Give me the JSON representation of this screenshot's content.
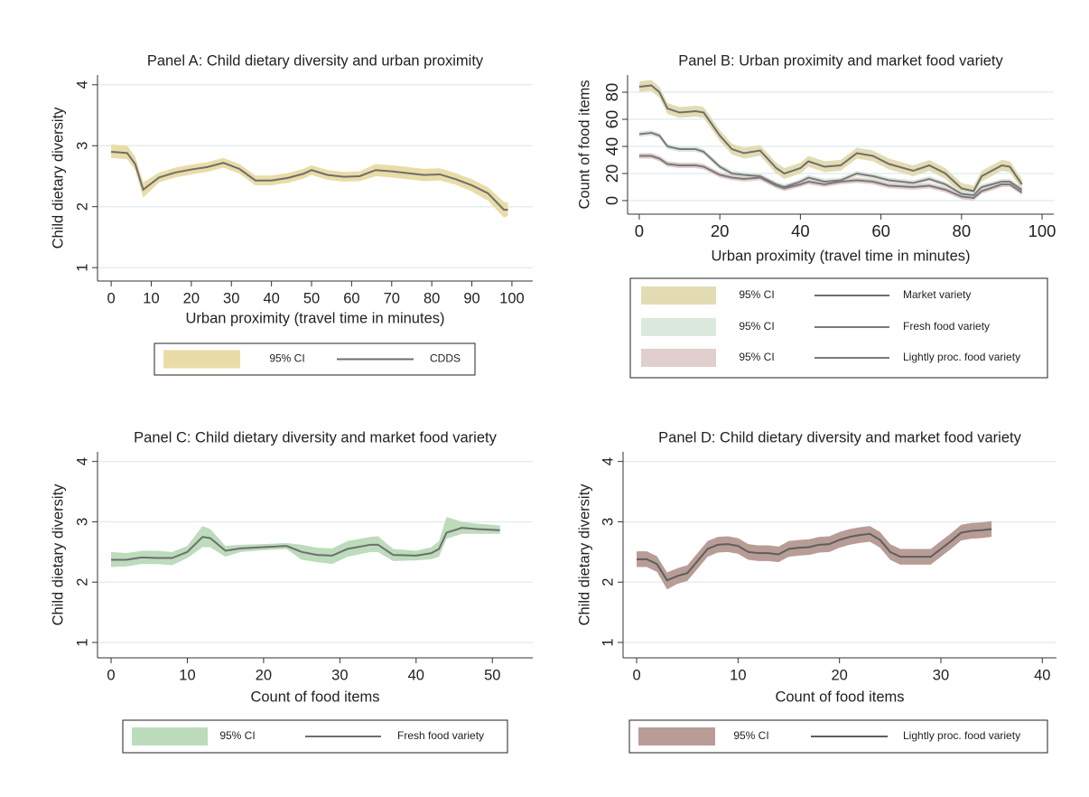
{
  "chart_data": [
    {
      "type": "line",
      "title": "Panel A: Child dietary diversity and urban proximity",
      "xlabel": "Urban proximity (travel time in minutes)",
      "ylabel": "Child dietary diversity",
      "x": [
        0,
        4,
        6,
        8,
        12,
        16,
        20,
        24,
        28,
        32,
        36,
        40,
        44,
        48,
        50,
        54,
        58,
        62,
        66,
        70,
        74,
        78,
        82,
        86,
        90,
        94,
        98,
        99
      ],
      "xlim": [
        -3.4,
        105.2
      ],
      "ylim": [
        0.78,
        4.16
      ],
      "xticks": [
        0,
        10,
        20,
        30,
        40,
        50,
        60,
        70,
        80,
        90,
        100
      ],
      "yticks": [
        1,
        2,
        3,
        4
      ],
      "grid": true,
      "series": [
        {
          "name": "CDDS",
          "color": "#6e6e6e",
          "values": [
            2.9,
            2.88,
            2.7,
            2.28,
            2.48,
            2.56,
            2.61,
            2.65,
            2.72,
            2.62,
            2.43,
            2.43,
            2.47,
            2.54,
            2.6,
            2.52,
            2.49,
            2.5,
            2.6,
            2.58,
            2.55,
            2.52,
            2.53,
            2.45,
            2.35,
            2.22,
            1.95,
            1.95
          ],
          "band": {
            "name": "95% CI",
            "color": "#e9dca6",
            "lower": [
              2.8,
              2.78,
              2.6,
              2.15,
              2.4,
              2.48,
              2.53,
              2.57,
              2.64,
              2.54,
              2.35,
              2.35,
              2.39,
              2.46,
              2.52,
              2.44,
              2.41,
              2.42,
              2.5,
              2.48,
              2.45,
              2.42,
              2.43,
              2.36,
              2.25,
              2.1,
              1.82,
              1.85
            ],
            "upper": [
              3.02,
              3.0,
              2.82,
              2.4,
              2.56,
              2.64,
              2.69,
              2.73,
              2.8,
              2.7,
              2.51,
              2.51,
              2.55,
              2.62,
              2.68,
              2.6,
              2.57,
              2.58,
              2.7,
              2.68,
              2.65,
              2.62,
              2.63,
              2.55,
              2.45,
              2.32,
              2.08,
              2.06
            ]
          }
        }
      ]
    },
    {
      "type": "line",
      "title": "Panel B: Urban proximity and market food variety",
      "xlabel": "Urban proximity (travel time in minutes)",
      "ylabel": "Count of food items",
      "x": [
        0,
        3,
        5,
        7,
        10,
        14,
        16,
        20,
        23,
        26,
        30,
        34,
        36,
        40,
        42,
        46,
        50,
        54,
        58,
        62,
        68,
        72,
        76,
        80,
        83,
        85,
        90,
        92,
        95
      ],
      "xlim": [
        -2.9,
        102.9
      ],
      "ylim": [
        -10,
        92.7
      ],
      "xticks": [
        0,
        20,
        40,
        60,
        80,
        100
      ],
      "yticks": [
        0,
        20,
        40,
        60,
        80
      ],
      "grid": true,
      "series": [
        {
          "name": "Market variety",
          "color": "#6e6e6e",
          "values": [
            84,
            85,
            80,
            68,
            65,
            66,
            65,
            48,
            38,
            35,
            37,
            24,
            20,
            24,
            29,
            25,
            26,
            35,
            33,
            27,
            22,
            26,
            20,
            9,
            7,
            18,
            26,
            25,
            12
          ],
          "band": {
            "name": "95% CI",
            "color": "#e3dcb2",
            "lower": [
              80,
              81,
              76,
              64,
              61,
              62,
              61,
              44,
              34,
              31,
              33,
              20,
              16,
              20,
              25,
              21,
              22,
              31,
              29,
              23,
              18,
              22,
              16,
              5,
              3,
              14,
              22,
              21,
              8
            ],
            "upper": [
              88,
              89,
              84,
              72,
              69,
              70,
              69,
              52,
              42,
              39,
              41,
              28,
              24,
              28,
              33,
              29,
              30,
              39,
              37,
              31,
              26,
              30,
              24,
              13,
              11,
              22,
              30,
              29,
              16
            ]
          }
        },
        {
          "name": "Fresh food variety",
          "color": "#7a7a7a",
          "values": [
            49,
            50,
            48,
            40,
            38,
            38,
            36,
            25,
            20,
            19,
            18,
            12,
            10,
            14,
            17,
            14,
            15,
            20,
            18,
            15,
            13,
            16,
            12,
            5,
            4,
            10,
            14,
            14,
            8
          ],
          "band": {
            "name": "95% CI",
            "color": "#dbe8de",
            "lower": [
              47,
              48,
              46,
              38,
              36,
              36,
              34,
              23,
              18,
              17,
              16,
              10,
              8,
              12,
              15,
              12,
              13,
              18,
              16,
              13,
              11,
              14,
              10,
              3,
              2,
              8,
              12,
              12,
              6
            ],
            "upper": [
              51,
              52,
              50,
              42,
              40,
              40,
              38,
              27,
              22,
              21,
              20,
              14,
              12,
              16,
              19,
              16,
              17,
              22,
              20,
              17,
              15,
              18,
              14,
              7,
              6,
              12,
              16,
              16,
              10
            ]
          }
        },
        {
          "name": "Lightly proc. food variety",
          "color": "#7a7a7a",
          "values": [
            33,
            33,
            31,
            27,
            26,
            26,
            25,
            19,
            17,
            16,
            17,
            11,
            9,
            12,
            14,
            12,
            14,
            15,
            14,
            11,
            10,
            11,
            8,
            3,
            2,
            7,
            12,
            12,
            6
          ],
          "band": {
            "name": "95% CI",
            "color": "#e0cfcd",
            "lower": [
              31,
              31,
              29,
              25,
              24,
              24,
              23,
              17,
              15,
              14,
              15,
              9,
              7,
              10,
              12,
              10,
              12,
              13,
              12,
              9,
              8,
              9,
              6,
              1,
              0,
              5,
              10,
              10,
              4
            ],
            "upper": [
              35,
              35,
              33,
              29,
              28,
              28,
              27,
              21,
              19,
              18,
              19,
              13,
              11,
              14,
              16,
              14,
              16,
              17,
              16,
              13,
              12,
              13,
              10,
              5,
              4,
              9,
              14,
              14,
              8
            ]
          }
        }
      ]
    },
    {
      "type": "line",
      "title": "Panel C: Child dietary diversity and market food variety",
      "xlabel": "Count of food items",
      "ylabel": "Child dietary diversity",
      "x": [
        0,
        2,
        4,
        6,
        8,
        10,
        12,
        13,
        15,
        17,
        20,
        23,
        25,
        27,
        29,
        31,
        34,
        35,
        37,
        40,
        42,
        43,
        44,
        46,
        48,
        51
      ],
      "xlim": [
        -1.78,
        55.3
      ],
      "ylim": [
        0.745,
        4.16
      ],
      "xticks": [
        0,
        10,
        20,
        30,
        40,
        50
      ],
      "yticks": [
        1,
        2,
        3,
        4
      ],
      "grid": true,
      "series": [
        {
          "name": "Fresh food variety",
          "color": "#6e6e6e",
          "values": [
            2.37,
            2.37,
            2.41,
            2.4,
            2.4,
            2.5,
            2.75,
            2.73,
            2.52,
            2.56,
            2.58,
            2.6,
            2.5,
            2.45,
            2.44,
            2.55,
            2.62,
            2.62,
            2.45,
            2.44,
            2.48,
            2.55,
            2.82,
            2.9,
            2.88,
            2.86
          ],
          "band": {
            "name": "95% CI",
            "color": "#bcdcbc",
            "lower": [
              2.25,
              2.26,
              2.3,
              2.3,
              2.28,
              2.4,
              2.58,
              2.58,
              2.42,
              2.5,
              2.53,
              2.55,
              2.37,
              2.33,
              2.3,
              2.42,
              2.5,
              2.5,
              2.35,
              2.36,
              2.38,
              2.42,
              2.72,
              2.8,
              2.8,
              2.8
            ],
            "upper": [
              2.5,
              2.48,
              2.52,
              2.52,
              2.5,
              2.6,
              2.93,
              2.88,
              2.6,
              2.62,
              2.63,
              2.65,
              2.62,
              2.57,
              2.56,
              2.68,
              2.75,
              2.76,
              2.55,
              2.52,
              2.58,
              2.68,
              3.08,
              3.0,
              2.97,
              2.94
            ]
          }
        }
      ]
    },
    {
      "type": "line",
      "title": "Panel D: Child dietary diversity and market food variety",
      "xlabel": "Count of food items",
      "ylabel": "Child dietary diversity",
      "x": [
        0,
        1,
        2,
        3,
        4,
        5,
        6,
        7,
        8,
        9,
        10,
        11,
        12,
        13,
        14,
        15,
        16,
        17,
        18,
        19,
        20,
        21,
        22,
        23,
        24,
        25,
        26,
        27,
        28,
        29,
        30,
        31,
        32,
        33,
        34,
        35
      ],
      "xlim": [
        -1.34,
        41.4
      ],
      "ylim": [
        0.745,
        4.16
      ],
      "xticks": [
        0,
        10,
        20,
        30,
        40
      ],
      "yticks": [
        1,
        2,
        3,
        4
      ],
      "grid": true,
      "series": [
        {
          "name": "Lightly proc. food variety",
          "color": "#5e5e5e",
          "values": [
            2.38,
            2.38,
            2.3,
            2.03,
            2.1,
            2.15,
            2.35,
            2.55,
            2.62,
            2.63,
            2.6,
            2.5,
            2.48,
            2.48,
            2.46,
            2.55,
            2.57,
            2.58,
            2.62,
            2.63,
            2.7,
            2.75,
            2.78,
            2.8,
            2.7,
            2.5,
            2.42,
            2.42,
            2.42,
            2.42,
            2.55,
            2.68,
            2.82,
            2.85,
            2.86,
            2.88
          ],
          "band": {
            "name": "95% CI",
            "color": "#b89c96",
            "lower": [
              2.25,
              2.25,
              2.17,
              1.88,
              1.97,
              2.02,
              2.22,
              2.42,
              2.49,
              2.5,
              2.47,
              2.37,
              2.35,
              2.35,
              2.33,
              2.42,
              2.44,
              2.45,
              2.49,
              2.5,
              2.57,
              2.62,
              2.65,
              2.67,
              2.57,
              2.37,
              2.29,
              2.29,
              2.29,
              2.29,
              2.42,
              2.55,
              2.69,
              2.72,
              2.73,
              2.75
            ],
            "upper": [
              2.51,
              2.51,
              2.43,
              2.16,
              2.23,
              2.28,
              2.48,
              2.68,
              2.75,
              2.76,
              2.73,
              2.63,
              2.61,
              2.61,
              2.59,
              2.68,
              2.7,
              2.71,
              2.75,
              2.76,
              2.83,
              2.88,
              2.91,
              2.93,
              2.83,
              2.63,
              2.55,
              2.55,
              2.55,
              2.55,
              2.68,
              2.81,
              2.95,
              2.98,
              2.99,
              3.01
            ]
          }
        }
      ]
    }
  ]
}
